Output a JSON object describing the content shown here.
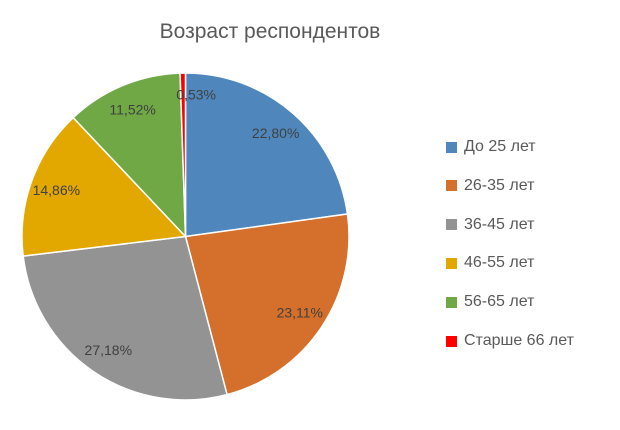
{
  "chart_data": {
    "type": "pie",
    "title": "Возраст респондентов",
    "categories": [
      "До 25 лет",
      "26-35 лет",
      "36-45 лет",
      "46-55 лет",
      "56-65 лет",
      "Старше 66 лет"
    ],
    "values": [
      22.8,
      23.11,
      27.18,
      14.86,
      11.52,
      0.53
    ],
    "data_labels": [
      "22,80%",
      "23,11%",
      "27,18%",
      "14,86%",
      "11,52%",
      "0,53%"
    ],
    "colors": [
      "#4f87bd",
      "#d4702c",
      "#939393",
      "#e2a800",
      "#6fa844",
      "#ff0000"
    ],
    "start_angle_deg": 0,
    "direction": "clockwise",
    "legend_position": "right"
  }
}
